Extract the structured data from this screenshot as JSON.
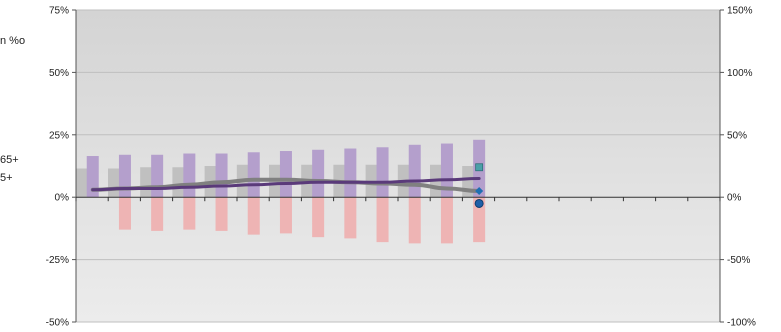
{
  "chart_data": {
    "type": "bar",
    "title": "",
    "legend_fragments": [
      "n %o",
      "65+",
      "5+"
    ],
    "left_axis": {
      "ylim": [
        -50,
        75
      ],
      "ticks": [
        {
          "value": 75,
          "label": "75%"
        },
        {
          "value": 50,
          "label": "50%"
        },
        {
          "value": 25,
          "label": "25%"
        },
        {
          "value": 0,
          "label": "0%"
        },
        {
          "value": -25,
          "label": "-25%"
        },
        {
          "value": -50,
          "label": "-50%"
        }
      ]
    },
    "right_axis": {
      "ylim": [
        -100,
        150
      ],
      "ticks": [
        {
          "value": 150,
          "label": "150%"
        },
        {
          "value": 100,
          "label": "100%"
        },
        {
          "value": 50,
          "label": "50%"
        },
        {
          "value": 0,
          "label": "0%"
        },
        {
          "value": -50,
          "label": "-50%"
        },
        {
          "value": -100,
          "label": "-100%"
        }
      ]
    },
    "category_count": 20,
    "grid": "horizontal",
    "series": [
      {
        "type": "bar",
        "axis": "left",
        "offset": -0.32,
        "color": "#c0c0c0",
        "values": [
          11.5,
          11.5,
          12,
          12,
          12.5,
          13,
          13,
          13,
          13,
          13,
          13,
          13,
          12.5,
          null,
          null,
          null,
          null,
          null,
          null,
          null
        ]
      },
      {
        "type": "bar",
        "axis": "left",
        "offset": 0.02,
        "color": "#b49fcc",
        "values": [
          16.5,
          17,
          17,
          17.5,
          17.5,
          18,
          18.5,
          19,
          19.5,
          20,
          21,
          21.5,
          23,
          null,
          null,
          null,
          null,
          null,
          null,
          null
        ]
      },
      {
        "type": "bar",
        "axis": "left",
        "offset": 0.02,
        "color": "#eeb4b4",
        "values": [
          null,
          -13,
          -13.5,
          -13,
          -13.5,
          -15,
          -14.5,
          -16,
          -16.5,
          -18,
          -18.5,
          -18.5,
          -18,
          null,
          null,
          null,
          null,
          null,
          null,
          null
        ]
      },
      {
        "type": "line",
        "axis": "left",
        "offset": 0.02,
        "color": "#808080",
        "width": 4,
        "values": [
          3,
          3.5,
          4,
          5,
          6,
          7,
          7,
          6.5,
          6,
          5.5,
          5,
          3.5,
          2.5,
          null,
          null,
          null,
          null,
          null,
          null,
          null
        ]
      },
      {
        "type": "line",
        "axis": "left",
        "offset": 0.02,
        "color": "#5a3a7a",
        "width": 3,
        "values": [
          3,
          3.5,
          3.5,
          4,
          4.5,
          5,
          5.5,
          6,
          6,
          6,
          6.5,
          7,
          7.5,
          null,
          null,
          null,
          null,
          null,
          null,
          null
        ]
      },
      {
        "type": "marker",
        "axis": "left",
        "index": 12,
        "offset": 0.02,
        "shape": "square",
        "color": "#4aa0a8",
        "value": 12
      },
      {
        "type": "marker",
        "axis": "left",
        "index": 12,
        "offset": 0.02,
        "shape": "diamond",
        "color": "#1f6fb3",
        "value": 2.5
      },
      {
        "type": "marker",
        "axis": "left",
        "index": 12,
        "offset": 0.02,
        "shape": "circle",
        "color": "#1f5fa8",
        "value": -2.5
      }
    ],
    "colors": {
      "plot_top": "#d4d4d4",
      "plot_bottom": "#ececec",
      "gridline": "#bfbfbf",
      "axis": "#555555"
    }
  }
}
